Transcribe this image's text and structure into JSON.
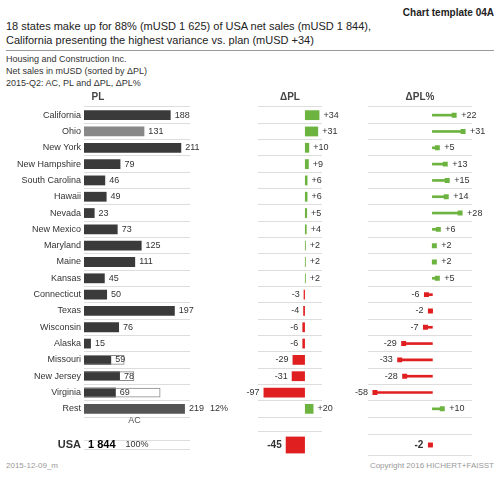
{
  "title": [
    "18 states make up for 88% (mUSD 1 625) of USA net sales (mUSD 1 844),",
    "California presenting the highest variance vs. plan (mUSD +34)"
  ],
  "label": "Chart template 04A",
  "subtitle": [
    "Housing and Construction Inc.",
    "Net sales in mUSD (sorted by ΔPL)",
    "2015-Q2: AC, PL and ΔPL, ΔPL%"
  ],
  "footnotes": [
    "2015-12-09_m",
    "Copyright 2016 HICHERT+FAISST"
  ],
  "chart_data": [
    {
      "type": "bar",
      "orientation": "horizontal",
      "title": "PL",
      "categories": [
        "California",
        "Ohio",
        "New York",
        "New Hampshire",
        "South Carolina",
        "Hawaii",
        "Nevada",
        "New Mexico",
        "Maryland",
        "Maine",
        "Kansas",
        "Connecticut",
        "Texas",
        "Wisconsin",
        "Alaska",
        "Missouri",
        "New Jersey",
        "Virginia",
        "Rest"
      ],
      "values": [
        188,
        131,
        211,
        79,
        46,
        49,
        23,
        73,
        125,
        111,
        45,
        50,
        197,
        76,
        15,
        59,
        78,
        69,
        219
      ],
      "plan_values": [
        null,
        null,
        null,
        null,
        null,
        null,
        null,
        null,
        null,
        null,
        null,
        null,
        null,
        null,
        null,
        88,
        109,
        166,
        null
      ],
      "colors": [
        "#3a3a3a",
        "#888888",
        "#3a3a3a",
        "#3a3a3a",
        "#3a3a3a",
        "#3a3a3a",
        "#3a3a3a",
        "#3a3a3a",
        "#3a3a3a",
        "#3a3a3a",
        "#3a3a3a",
        "#3a3a3a",
        "#3a3a3a",
        "#3a3a3a",
        "#3a3a3a",
        "#3a3a3a",
        "#3a3a3a",
        "#3a3a3a",
        "#555555"
      ],
      "xlim": [
        0,
        230
      ],
      "data_labels": true,
      "tick_labels": "y",
      "grid": true,
      "annotations": [
        {
          "text": "AC",
          "category": "Rest"
        },
        {
          "text": "12%",
          "category": "Rest"
        }
      ],
      "total": {
        "category": "USA",
        "label": "1 844",
        "share_label": "100%"
      }
    },
    {
      "type": "bar",
      "orientation": "horizontal",
      "title": "ΔPL",
      "categories": [
        "California",
        "Ohio",
        "New York",
        "New Hampshire",
        "South Carolina",
        "Hawaii",
        "Nevada",
        "New Mexico",
        "Maryland",
        "Maine",
        "Kansas",
        "Connecticut",
        "Texas",
        "Wisconsin",
        "Alaska",
        "Missouri",
        "New Jersey",
        "Virginia",
        "Rest"
      ],
      "values": [
        34,
        31,
        10,
        9,
        6,
        6,
        5,
        4,
        2,
        2,
        2,
        -3,
        -4,
        -6,
        -6,
        -29,
        -31,
        -97,
        20
      ],
      "value_labels": [
        "+34",
        "+31",
        "+10",
        "+9",
        "+6",
        "+6",
        "+5",
        "+4",
        "+2",
        "+2",
        "+2",
        "-3",
        "-4",
        "-6",
        "-6",
        "-29",
        "-31",
        "-97",
        "+20"
      ],
      "colors": [
        "#6db33f",
        "#6db33f",
        "#6db33f",
        "#6db33f",
        "#6db33f",
        "#6db33f",
        "#6db33f",
        "#6db33f",
        "#6db33f",
        "#6db33f",
        "#6db33f",
        "#e02020",
        "#e02020",
        "#e02020",
        "#e02020",
        "#e02020",
        "#e02020",
        "#e02020",
        "#6db33f"
      ],
      "xlim": [
        -110,
        40
      ],
      "data_labels": true,
      "tick_labels": false,
      "grid": true,
      "total": {
        "value": -45,
        "color": "#e02020"
      }
    },
    {
      "type": "lollipop",
      "orientation": "horizontal",
      "title": "ΔPL%",
      "categories": [
        "California",
        "Ohio",
        "New York",
        "New Hampshire",
        "South Carolina",
        "Hawaii",
        "Nevada",
        "New Mexico",
        "Maryland",
        "Maine",
        "Kansas",
        "Connecticut",
        "Texas",
        "Wisconsin",
        "Alaska",
        "Missouri",
        "New Jersey",
        "Virginia",
        "Rest"
      ],
      "values": [
        22,
        31,
        5,
        13,
        15,
        14,
        28,
        6,
        2,
        2,
        5,
        -6,
        -2,
        -7,
        -29,
        -33,
        -28,
        -58,
        10
      ],
      "value_labels": [
        "+22",
        "+31",
        "+5",
        "+13",
        "+15",
        "+14",
        "+28",
        "+6",
        "+2",
        "+2",
        "+5",
        "-6",
        "-2",
        "-7",
        "-29",
        "-33",
        "-28",
        "-58",
        "+10"
      ],
      "colors": [
        "#6db33f",
        "#6db33f",
        "#6db33f",
        "#6db33f",
        "#6db33f",
        "#6db33f",
        "#6db33f",
        "#6db33f",
        "#6db33f",
        "#6db33f",
        "#6db33f",
        "#e02020",
        "#e02020",
        "#e02020",
        "#e02020",
        "#e02020",
        "#e02020",
        "#e02020",
        "#6db33f"
      ],
      "xlim": [
        -65,
        40
      ],
      "data_labels": true,
      "tick_labels": false,
      "grid": true,
      "total": {
        "value": -2,
        "color": "#e02020"
      }
    }
  ]
}
